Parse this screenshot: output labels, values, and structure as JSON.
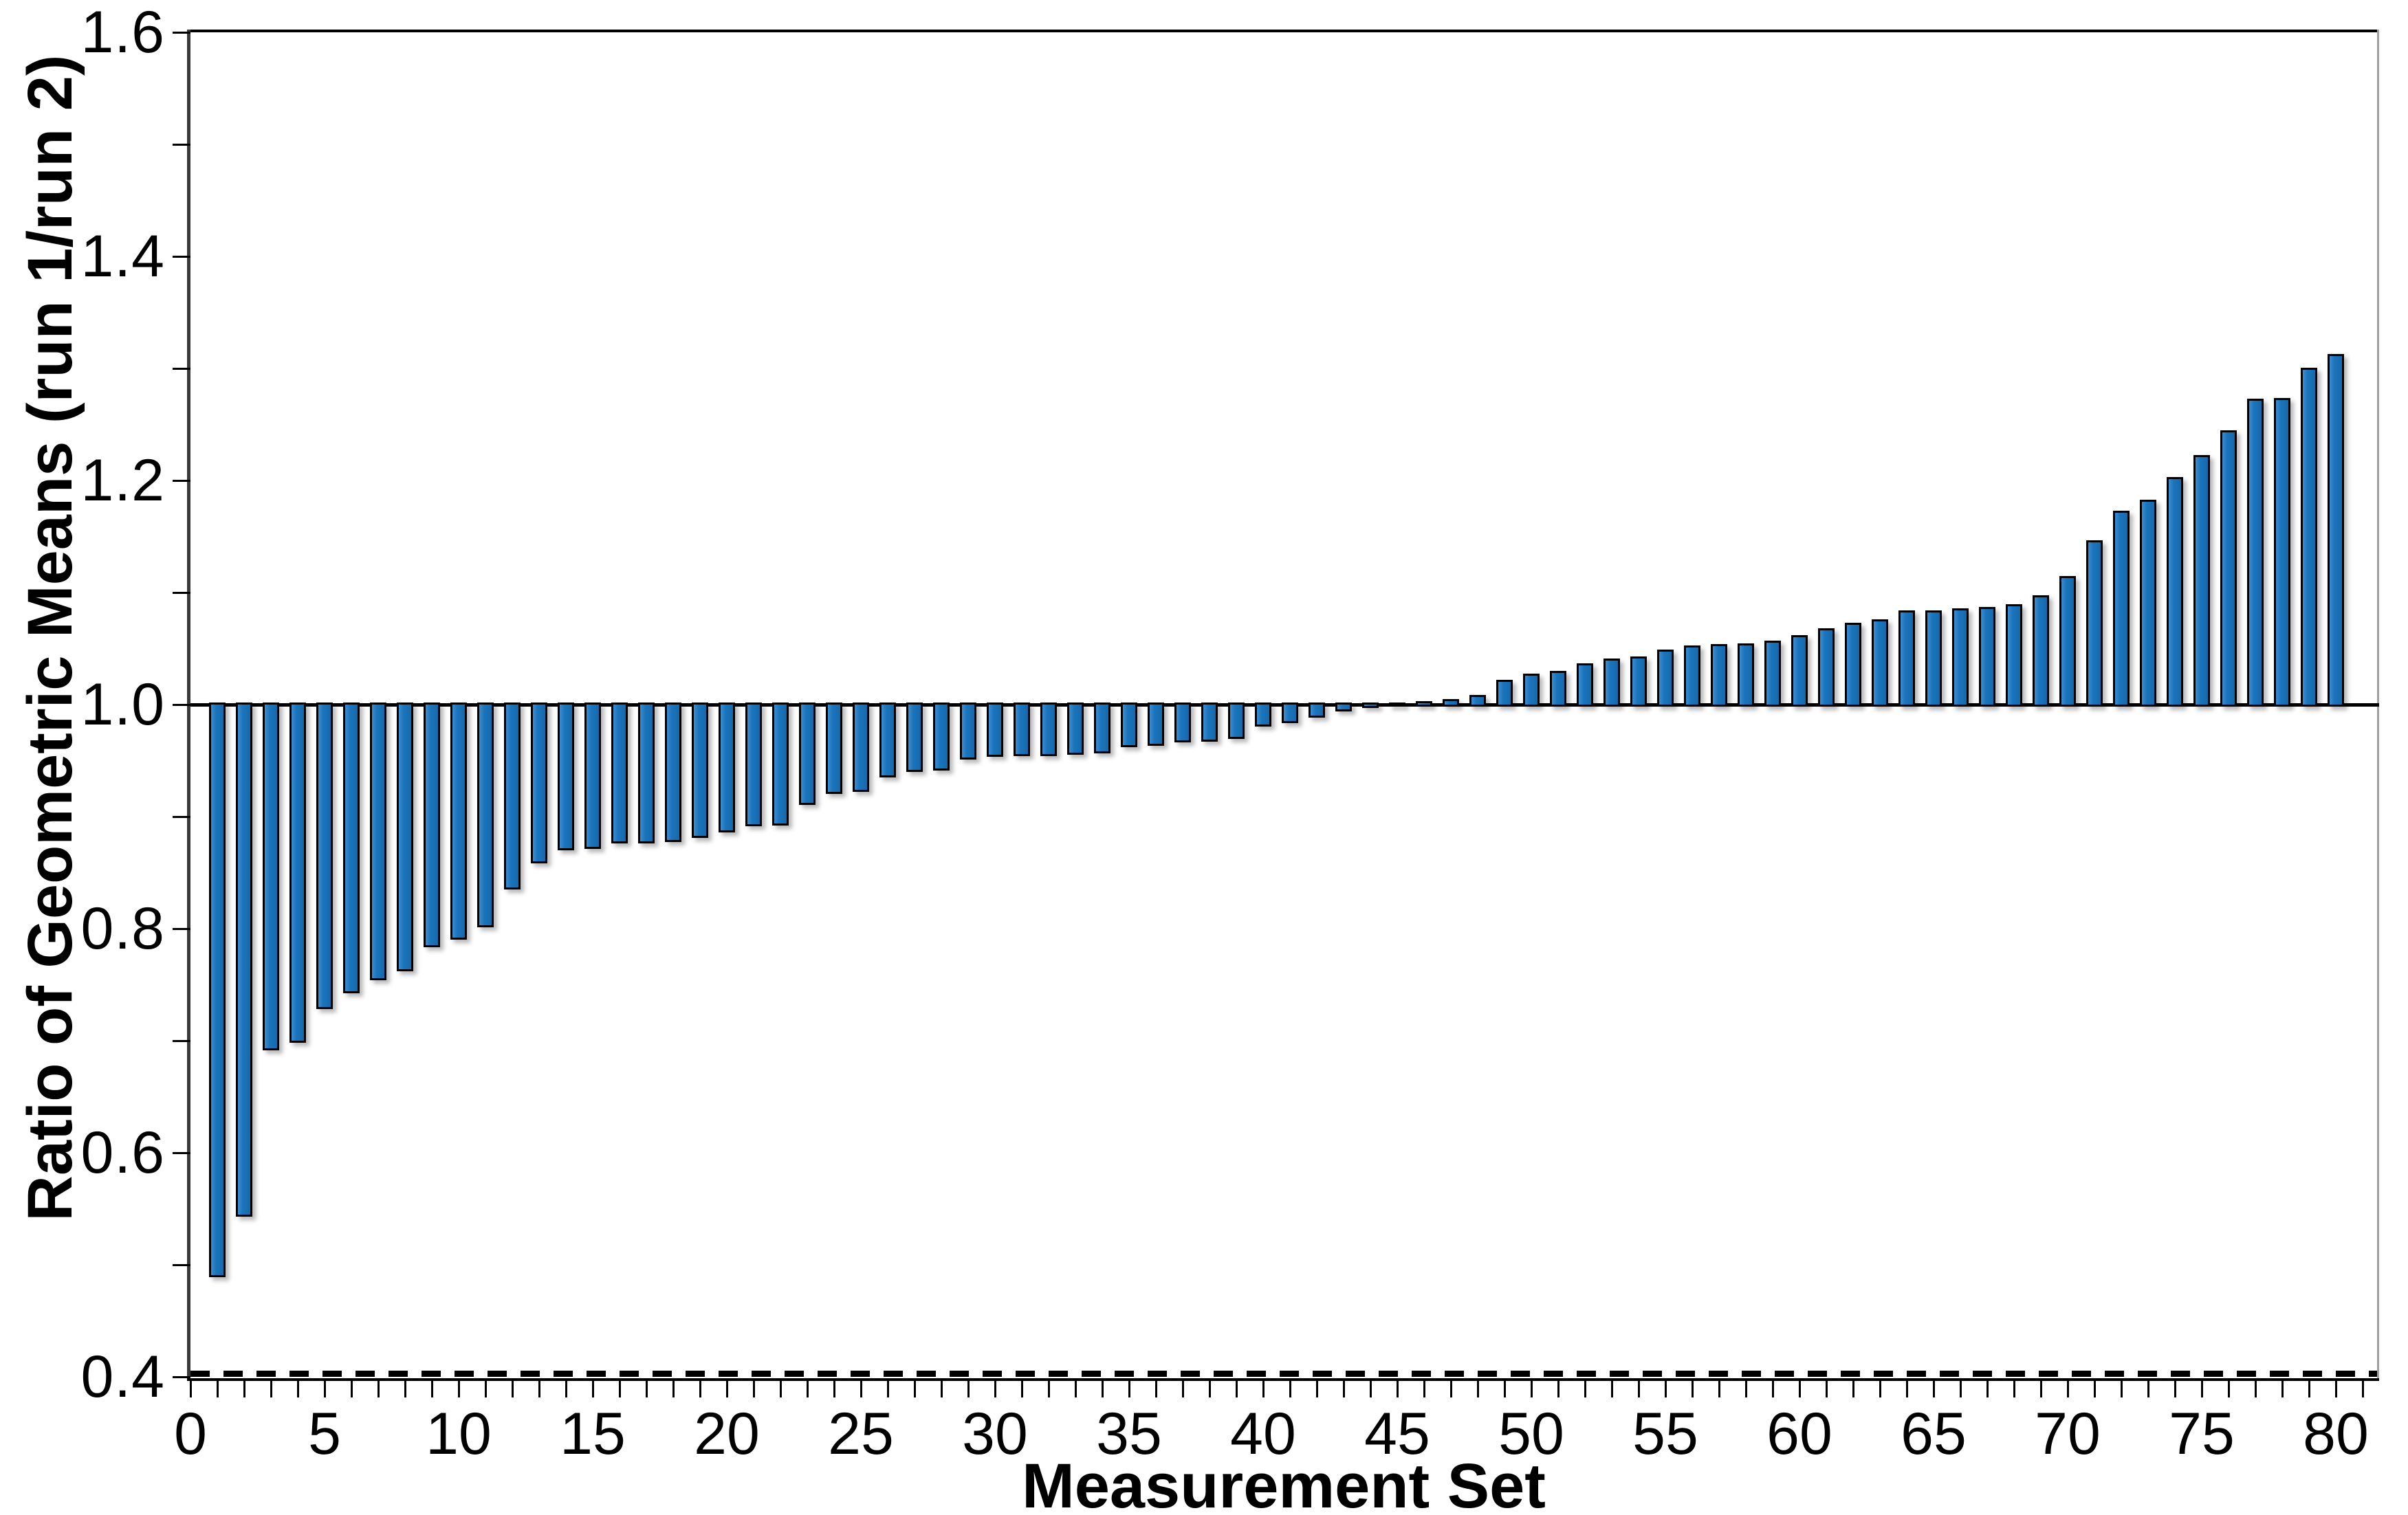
{
  "chart_data": {
    "type": "bar",
    "title": "",
    "xlabel": "Measurement Set",
    "ylabel": "Ratio of Geometric Means (run 1/run 2)",
    "x_start": 1,
    "values": [
      0.491,
      0.545,
      0.693,
      0.7,
      0.73,
      0.744,
      0.756,
      0.764,
      0.785,
      0.792,
      0.803,
      0.837,
      0.86,
      0.872,
      0.873,
      0.878,
      0.878,
      0.879,
      0.883,
      0.888,
      0.893,
      0.894,
      0.912,
      0.922,
      0.924,
      0.937,
      0.942,
      0.943,
      0.953,
      0.955,
      0.956,
      0.956,
      0.957,
      0.958,
      0.964,
      0.965,
      0.968,
      0.969,
      0.971,
      0.982,
      0.985,
      0.99,
      0.996,
      0.999,
      1.0,
      1.001,
      1.003,
      1.007,
      1.02,
      1.026,
      1.028,
      1.035,
      1.039,
      1.041,
      1.047,
      1.051,
      1.052,
      1.053,
      1.055,
      1.06,
      1.066,
      1.071,
      1.074,
      1.082,
      1.082,
      1.084,
      1.085,
      1.088,
      1.096,
      1.113,
      1.145,
      1.171,
      1.181,
      1.201,
      1.221,
      1.243,
      1.271,
      1.272,
      1.299,
      1.311
    ],
    "baseline": 1.0,
    "ylim": [
      0.4,
      1.6
    ],
    "xlim": [
      0,
      81.5
    ],
    "y_tick_step": 0.1,
    "y_major_ticks": [
      0.4,
      0.6,
      0.8,
      1.0,
      1.2,
      1.4,
      1.6
    ],
    "y_tick_labels": [
      "0.4",
      "0.6",
      "0.8",
      "1.0",
      "1.2",
      "1.4",
      "1.6"
    ],
    "x_tick_step": 1,
    "x_label_step": 5,
    "x_tick_labels": [
      "0",
      "5",
      "10",
      "15",
      "20",
      "25",
      "30",
      "35",
      "40",
      "45",
      "50",
      "55",
      "60",
      "65",
      "70",
      "75",
      "80"
    ],
    "dashed_reference_line_y": 0.4,
    "solid_reference_line_y": 1.0,
    "grid": "off",
    "legend": "none",
    "bar_color": "#1b75bc",
    "bar_border_color": "#000000",
    "axis_color": "#000000",
    "right_frame_color": "#a0a0a0"
  }
}
